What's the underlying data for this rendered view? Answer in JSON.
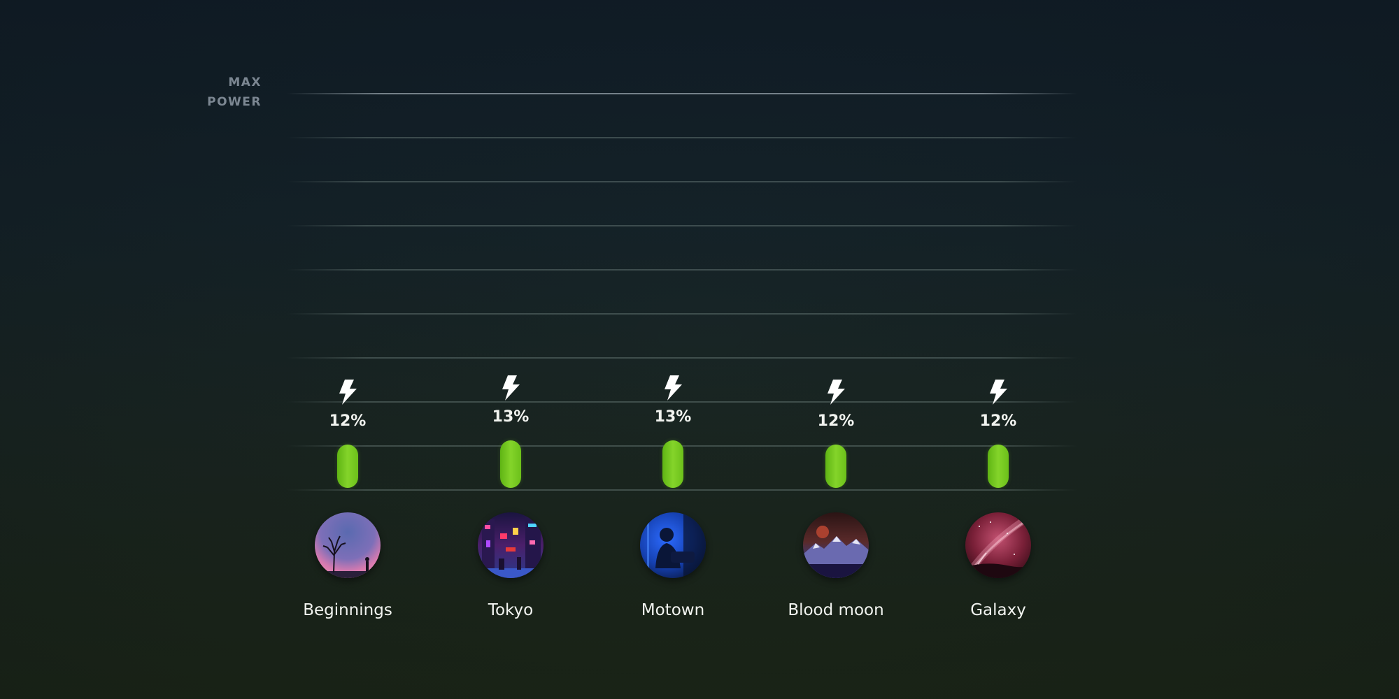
{
  "axis": {
    "max_label_line1": "MAX",
    "max_label_line2": "POWER"
  },
  "colors": {
    "bar": "#76c922",
    "text": "#f2f4f0",
    "axis_label": "#7c8792"
  },
  "chart_data": {
    "type": "bar",
    "categories": [
      "Beginnings",
      "Tokyo",
      "Motown",
      "Blood moon",
      "Galaxy"
    ],
    "values": [
      12,
      13,
      13,
      12,
      12
    ],
    "value_labels": [
      "12%",
      "13%",
      "13%",
      "12%",
      "12%"
    ],
    "ylabel": "MAX POWER",
    "ylim": [
      0,
      100
    ],
    "grid": true,
    "icons": [
      "lightning-bolt-icon",
      "lightning-bolt-icon",
      "lightning-bolt-icon",
      "lightning-bolt-icon",
      "lightning-bolt-icon"
    ],
    "category_images": [
      "beginnings-thumbnail",
      "tokyo-thumbnail",
      "motown-thumbnail",
      "blood-moon-thumbnail",
      "galaxy-thumbnail"
    ]
  }
}
